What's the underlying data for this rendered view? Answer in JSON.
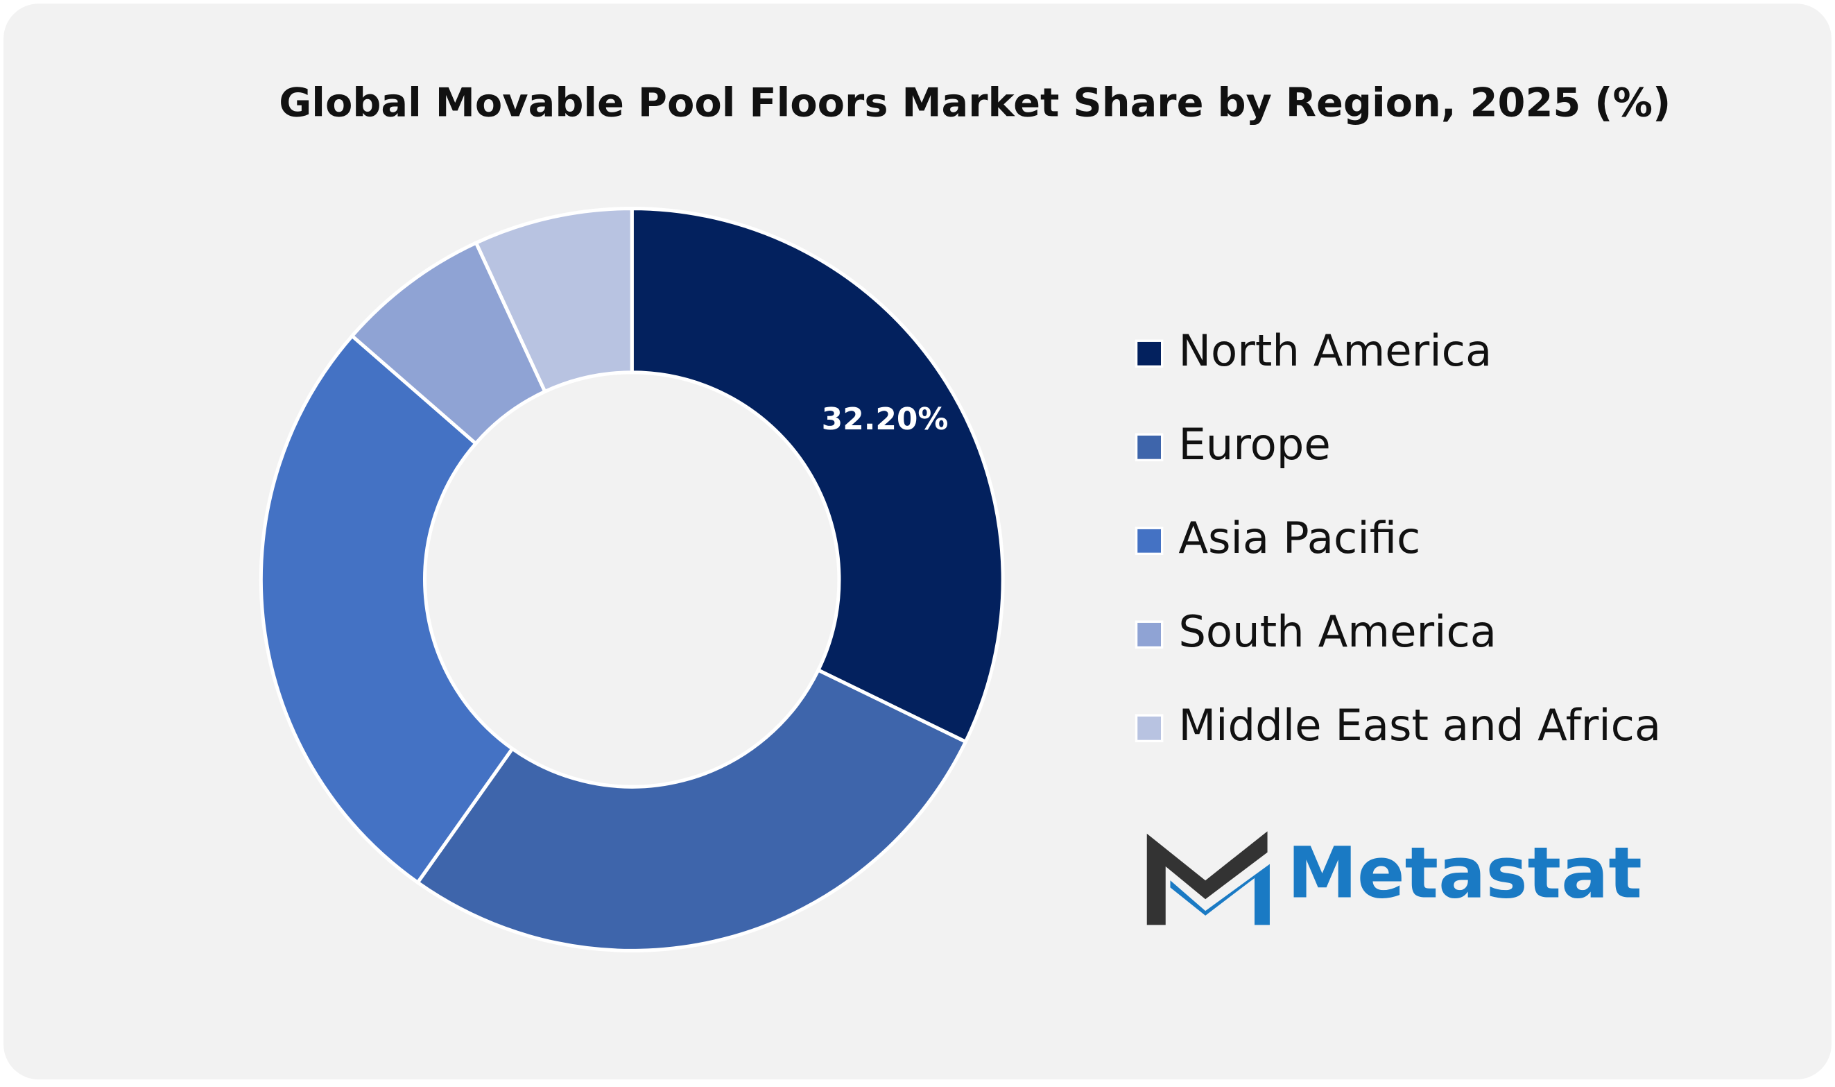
{
  "chart_data": {
    "type": "donut",
    "title": "Global Movable Pool Floors Market Share by Region, 2025 (%)",
    "categories": [
      "North America",
      "Europe",
      "Asia Pacific",
      "South America",
      "Middle East and Africa"
    ],
    "values": [
      32.2,
      27.6,
      26.6,
      6.7,
      6.9
    ],
    "value_labels": [
      "32.20%",
      null,
      null,
      null,
      null
    ],
    "colors": [
      "#03215e",
      "#3e65ab",
      "#4472c4",
      "#8fa3d4",
      "#b8c3e1"
    ],
    "legend": "right"
  },
  "logo": {
    "text": "Metastat"
  }
}
